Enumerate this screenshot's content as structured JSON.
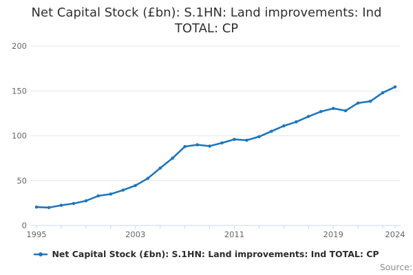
{
  "title": "Net Capital Stock (£bn): S.1HN: Land improvements: Ind TOTAL: CP",
  "legend": {
    "label": "Net Capital Stock (£bn): S.1HN: Land improvements: Ind TOTAL: CP",
    "marker_icon": "line-with-dot-icon"
  },
  "source_label": "Source:",
  "colors": {
    "line": "#1d76bc",
    "grid": "#e6e6e6",
    "axis": "#ccd6eb",
    "tick_label": "#666666",
    "title_text": "#2f2f2f",
    "source_text": "#8c8c8c"
  },
  "chart_data": {
    "type": "line",
    "title": "Net Capital Stock (£bn): S.1HN: Land improvements: Ind TOTAL: CP",
    "xlabel": "",
    "ylabel": "",
    "grid": "horizontal",
    "legend_position": "bottom",
    "xlim": [
      1995,
      2024
    ],
    "ylim": [
      0,
      200
    ],
    "y_ticks": [
      0,
      50,
      100,
      150,
      200
    ],
    "x_tick_marks_every_years": 2,
    "x_tick_labels": [
      "1995",
      "2003",
      "2011",
      "2019",
      "2024"
    ],
    "x_tick_label_years": [
      1995,
      2003,
      2011,
      2019,
      2024
    ],
    "series": [
      {
        "name": "Net Capital Stock (£bn): S.1HN: Land improvements: Ind TOTAL: CP",
        "color": "#1d76bc",
        "x": [
          1995,
          1996,
          1997,
          1998,
          1999,
          2000,
          2001,
          2002,
          2003,
          2004,
          2005,
          2006,
          2007,
          2008,
          2009,
          2010,
          2011,
          2012,
          2013,
          2014,
          2015,
          2016,
          2017,
          2018,
          2019,
          2020,
          2021,
          2022,
          2023,
          2024
        ],
        "values": [
          20.5,
          20,
          22.5,
          24.5,
          27.5,
          33,
          35,
          39.5,
          44.5,
          52.5,
          64,
          75,
          88,
          90,
          88.5,
          92,
          96,
          95,
          99,
          105,
          111,
          115.5,
          121.5,
          127,
          130.5,
          128,
          136.5,
          138.5,
          148,
          154.5
        ]
      }
    ]
  }
}
